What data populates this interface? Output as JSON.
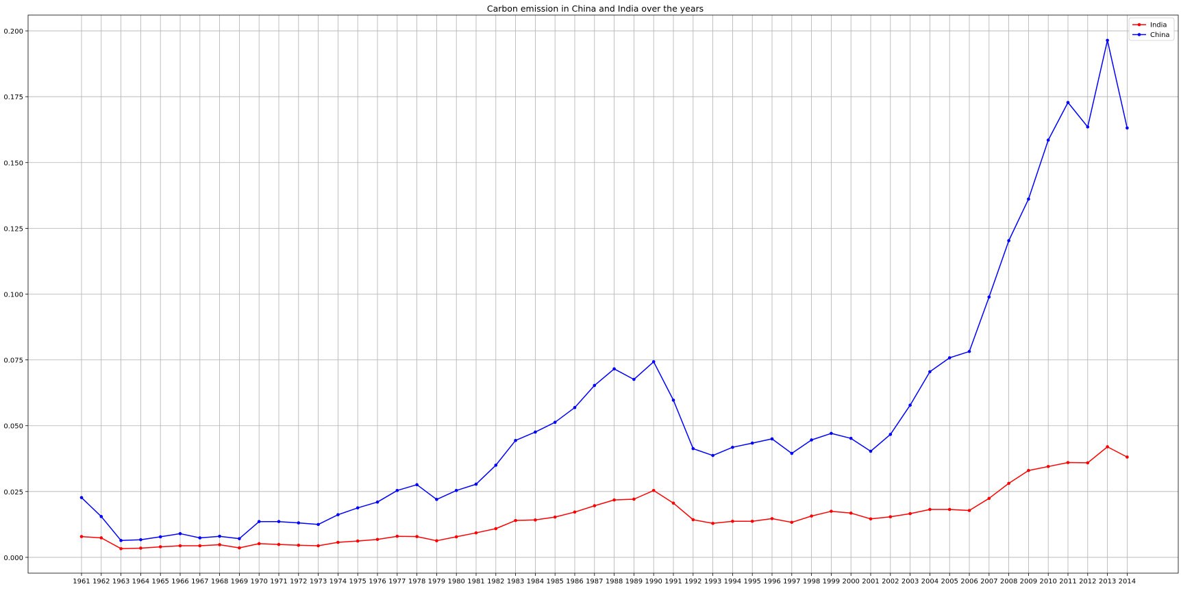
{
  "chart_data": {
    "type": "line",
    "title": "Carbon emission in China and India over the years",
    "xlabel": "",
    "ylabel": "",
    "x": [
      "1961",
      "1962",
      "1963",
      "1964",
      "1965",
      "1966",
      "1967",
      "1968",
      "1969",
      "1970",
      "1971",
      "1972",
      "1973",
      "1974",
      "1975",
      "1976",
      "1977",
      "1978",
      "1979",
      "1980",
      "1981",
      "1982",
      "1983",
      "1984",
      "1985",
      "1986",
      "1987",
      "1988",
      "1989",
      "1990",
      "1991",
      "1992",
      "1993",
      "1994",
      "1995",
      "1996",
      "1997",
      "1998",
      "1999",
      "2000",
      "2001",
      "2002",
      "2003",
      "2004",
      "2005",
      "2006",
      "2007",
      "2008",
      "2009",
      "2010",
      "2011",
      "2012",
      "2013",
      "2014"
    ],
    "ylim": [
      -0.006,
      0.206
    ],
    "yticks": [
      "0.000",
      "0.025",
      "0.050",
      "0.075",
      "0.100",
      "0.125",
      "0.150",
      "0.175",
      "0.200"
    ],
    "grid": true,
    "legend_position": "top-right",
    "series": [
      {
        "name": "India",
        "color": "#ff0000",
        "values": [
          0.0079,
          0.0074,
          0.0033,
          0.0035,
          0.004,
          0.0044,
          0.0044,
          0.0048,
          0.0036,
          0.0052,
          0.0049,
          0.0046,
          0.0044,
          0.0057,
          0.0062,
          0.0068,
          0.008,
          0.0079,
          0.0063,
          0.0078,
          0.0093,
          0.0109,
          0.014,
          0.0142,
          0.0153,
          0.0172,
          0.0196,
          0.0218,
          0.0221,
          0.0254,
          0.0206,
          0.0143,
          0.0129,
          0.0137,
          0.0137,
          0.0147,
          0.0133,
          0.0157,
          0.0175,
          0.0168,
          0.0146,
          0.0154,
          0.0166,
          0.0182,
          0.0182,
          0.0178,
          0.0224,
          0.0281,
          0.033,
          0.0345,
          0.036,
          0.0359,
          0.042,
          0.0381
        ]
      },
      {
        "name": "China",
        "color": "#0000ff",
        "values": [
          0.0227,
          0.0155,
          0.0064,
          0.0067,
          0.0078,
          0.009,
          0.0074,
          0.008,
          0.0071,
          0.0136,
          0.0136,
          0.0131,
          0.0125,
          0.0162,
          0.0188,
          0.021,
          0.0254,
          0.0276,
          0.022,
          0.0254,
          0.0278,
          0.035,
          0.0444,
          0.0476,
          0.0513,
          0.0569,
          0.0653,
          0.0716,
          0.0676,
          0.0743,
          0.0597,
          0.0413,
          0.0387,
          0.0418,
          0.0434,
          0.045,
          0.0395,
          0.0446,
          0.0471,
          0.0452,
          0.0403,
          0.0467,
          0.0578,
          0.0705,
          0.0758,
          0.0782,
          0.0989,
          0.1203,
          0.1361,
          0.1585,
          0.1728,
          0.1635,
          0.1964,
          0.1631
        ]
      }
    ]
  }
}
